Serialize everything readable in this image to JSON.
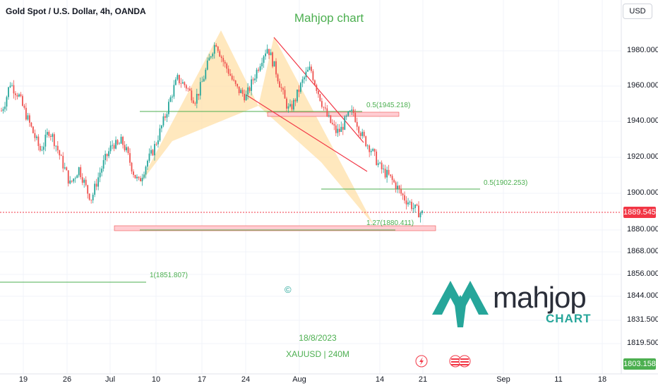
{
  "header": {
    "symbol": "Gold Spot / U.S. Dollar, 4h, OANDA",
    "chart_title": "Mahjop chart",
    "currency": "USD"
  },
  "colors": {
    "up": "#26a69a",
    "down": "#ef5350",
    "fib_line": "#4caf50",
    "zone": "#ffcdd2",
    "pattern_fill": "#ffe0a8",
    "channel": "#f23645",
    "current_price": "#f23645",
    "last_label": "#4caf50"
  },
  "annotations": {
    "fib_upper": "0.5(1945.218)",
    "fib_mid": "0.5(1902.253)",
    "fib_ext": "1.27(1880.411)",
    "fib_low": "1(1851.807)",
    "copyright": "©",
    "date": "18/8/2023",
    "symbol_tf": "XAUUSD | 240M"
  },
  "logo": {
    "word": "mahjop",
    "sub": "CHART",
    "icon": "mahjop-m-logo-icon"
  },
  "icons": {
    "lightning": "lightning-icon",
    "flags": "us-flag-icon"
  },
  "chart_data": {
    "type": "candlestick",
    "title": "Mahjop chart",
    "symbol": "Gold Spot / U.S. Dollar",
    "timeframe": "4h",
    "x_ticks": [
      "19",
      "26",
      "Jul",
      "10",
      "17",
      "24",
      "Aug",
      "14",
      "21",
      "Sep",
      "11",
      "18"
    ],
    "y_ticks": [
      "1980.000",
      "1960.000",
      "1940.000",
      "1920.000",
      "1900.000",
      "1880.000",
      "1868.000",
      "1856.000",
      "1844.000",
      "1831.500",
      "1819.500"
    ],
    "ylim": [
      1795,
      2000
    ],
    "current_price": "1889.545",
    "last_label": "1803.158",
    "closes": [
      1946,
      1952,
      1962,
      1958,
      1955,
      1948,
      1942,
      1936,
      1930,
      1924,
      1928,
      1935,
      1931,
      1925,
      1918,
      1912,
      1905,
      1909,
      1914,
      1908,
      1901,
      1897,
      1905,
      1912,
      1918,
      1923,
      1928,
      1926,
      1929,
      1924,
      1917,
      1910,
      1906,
      1912,
      1918,
      1922,
      1928,
      1935,
      1942,
      1950,
      1958,
      1964,
      1962,
      1960,
      1956,
      1952,
      1957,
      1964,
      1972,
      1980,
      1985,
      1978,
      1972,
      1968,
      1962,
      1958,
      1956,
      1954,
      1960,
      1966,
      1972,
      1978,
      1982,
      1975,
      1968,
      1960,
      1952,
      1946,
      1950,
      1956,
      1962,
      1967,
      1970,
      1962,
      1955,
      1948,
      1942,
      1938,
      1934,
      1935,
      1940,
      1944,
      1945,
      1938,
      1932,
      1928,
      1925,
      1920,
      1915,
      1912,
      1910,
      1907,
      1904,
      1900,
      1897,
      1895,
      1892,
      1890,
      1889
    ]
  }
}
